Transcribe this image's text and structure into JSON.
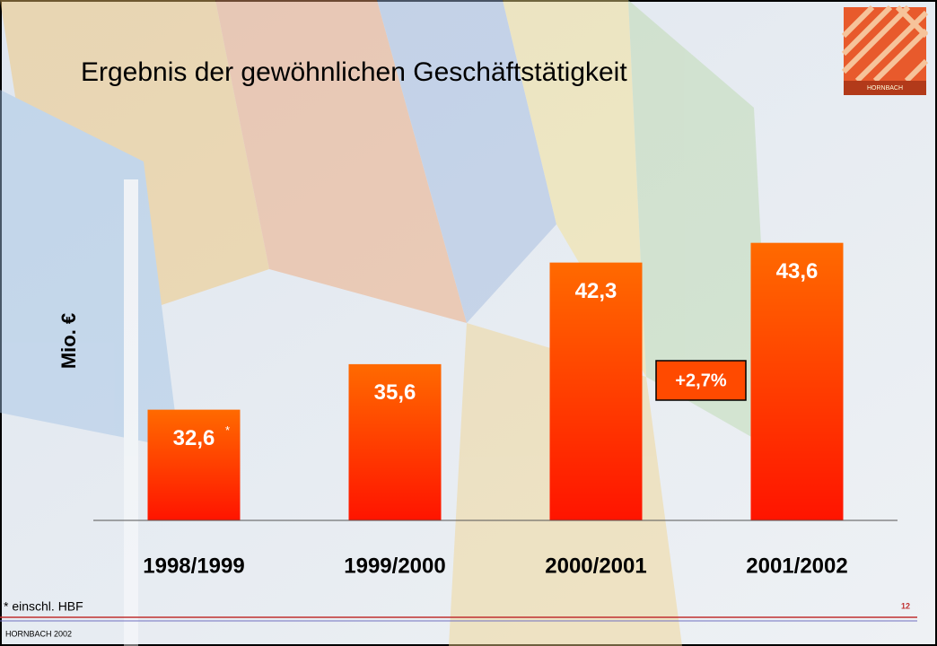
{
  "chart_data": {
    "type": "bar",
    "title": "Ergebnis der gewöhnlichen Geschäftstätigkeit",
    "y_label": "Mio. €",
    "categories": [
      "1998/1999",
      "1999/2000",
      "2000/2001",
      "2001/2002"
    ],
    "values": [
      32.6,
      35.6,
      42.3,
      43.6
    ],
    "value_labels": [
      "32,6",
      "35,6",
      "42,3",
      "43,6"
    ],
    "color": "#ff6a00",
    "ylim": [
      25.3,
      45
    ],
    "annotations": [
      "*",
      "+2,7%"
    ],
    "footnote": "* einschl. HBF"
  },
  "footer": {
    "left": "HORNBACH 2002",
    "page": "12",
    "logo": "HORNBACH"
  }
}
